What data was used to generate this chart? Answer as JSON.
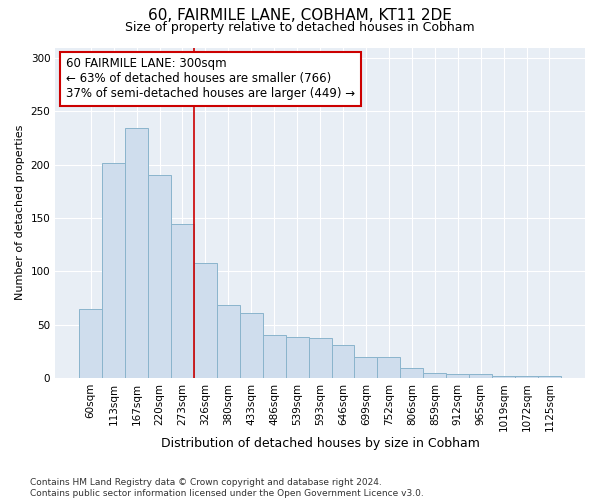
{
  "title1": "60, FAIRMILE LANE, COBHAM, KT11 2DE",
  "title2": "Size of property relative to detached houses in Cobham",
  "xlabel": "Distribution of detached houses by size in Cobham",
  "ylabel": "Number of detached properties",
  "categories": [
    "60sqm",
    "113sqm",
    "167sqm",
    "220sqm",
    "273sqm",
    "326sqm",
    "380sqm",
    "433sqm",
    "486sqm",
    "539sqm",
    "593sqm",
    "646sqm",
    "699sqm",
    "752sqm",
    "806sqm",
    "859sqm",
    "912sqm",
    "965sqm",
    "1019sqm",
    "1072sqm",
    "1125sqm"
  ],
  "values": [
    65,
    202,
    234,
    190,
    144,
    108,
    68,
    61,
    40,
    38,
    37,
    31,
    20,
    20,
    9,
    5,
    4,
    4,
    2,
    2,
    2
  ],
  "bar_color": "#cfdded",
  "bar_edge_color": "#8ab4cc",
  "vline_color": "#cc0000",
  "vline_x": 5.5,
  "annotation_text": "60 FAIRMILE LANE: 300sqm\n← 63% of detached houses are smaller (766)\n37% of semi-detached houses are larger (449) →",
  "annotation_box_color": "white",
  "annotation_box_edge": "#cc0000",
  "ylim": [
    0,
    310
  ],
  "yticks": [
    0,
    50,
    100,
    150,
    200,
    250,
    300
  ],
  "footnote": "Contains HM Land Registry data © Crown copyright and database right 2024.\nContains public sector information licensed under the Open Government Licence v3.0.",
  "bg_color": "#ffffff",
  "plot_bg_color": "#e8eef5",
  "grid_color": "#ffffff",
  "title1_fontsize": 11,
  "title2_fontsize": 9,
  "xlabel_fontsize": 9,
  "ylabel_fontsize": 8,
  "tick_fontsize": 7.5,
  "footnote_fontsize": 6.5
}
